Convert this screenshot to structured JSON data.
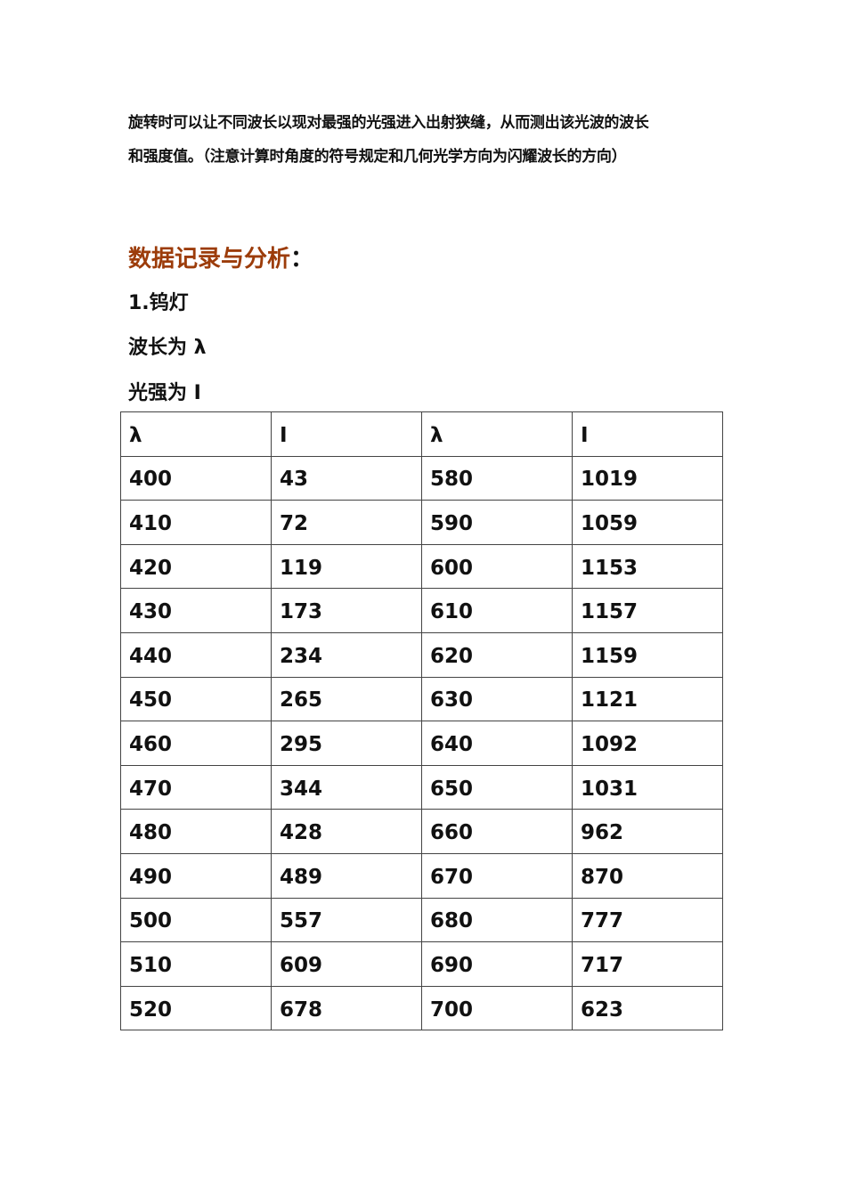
{
  "intro": {
    "lines": [
      "旋转时可以让不同波长以现对最强的光强进入出射狭缝，从而测出该光波的波长",
      "和强度值。（注意计算时角度的符号规定和几何光学方向为闪耀波长的方向）"
    ]
  },
  "section": {
    "title": "数据记录与分析",
    "colon": "：",
    "heading_color": "#9c3c0a"
  },
  "items": [
    "1.钨灯",
    "波长为 λ",
    "光强为 I"
  ],
  "table": {
    "headers": [
      "λ",
      "I",
      "λ",
      "I"
    ],
    "rows": [
      [
        "400",
        "43",
        "580",
        "1019"
      ],
      [
        "410",
        "72",
        "590",
        "1059"
      ],
      [
        "420",
        "119",
        "600",
        "1153"
      ],
      [
        "430",
        "173",
        "610",
        "1157"
      ],
      [
        "440",
        "234",
        "620",
        "1159"
      ],
      [
        "450",
        "265",
        "630",
        "1121"
      ],
      [
        "460",
        "295",
        "640",
        "1092"
      ],
      [
        "470",
        "344",
        "650",
        "1031"
      ],
      [
        "480",
        "428",
        "660",
        "962"
      ],
      [
        "490",
        "489",
        "670",
        "870"
      ],
      [
        "500",
        "557",
        "680",
        "777"
      ],
      [
        "510",
        "609",
        "690",
        "717"
      ],
      [
        "520",
        "678",
        "700",
        "623"
      ]
    ]
  }
}
